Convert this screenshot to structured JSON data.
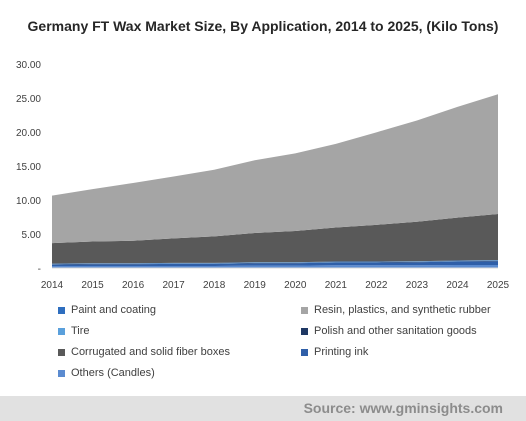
{
  "chart_data": {
    "type": "area",
    "title": "Germany FT Wax Market Size, By Application, 2014 to 2025, (Kilo Tons)",
    "xlabel": "",
    "ylabel": "",
    "x": [
      "2014",
      "2015",
      "2016",
      "2017",
      "2018",
      "2019",
      "2020",
      "2021",
      "2022",
      "2023",
      "2024",
      "2025"
    ],
    "ylim": [
      0,
      30
    ],
    "yticks": [
      0,
      5,
      10,
      15,
      20,
      25,
      30
    ],
    "ytick_labels": [
      "-",
      "5.00",
      "10.00",
      "15.00",
      "20.00",
      "25.00",
      "30.00"
    ],
    "stacked": true,
    "grid": false,
    "legend_position": "bottom",
    "series": [
      {
        "name": "Others (Candles)",
        "color": "#5b8bd0",
        "values": [
          0.3,
          0.3,
          0.3,
          0.3,
          0.3,
          0.35,
          0.35,
          0.4,
          0.4,
          0.4,
          0.45,
          0.45
        ]
      },
      {
        "name": "Printing ink",
        "color": "#2f5fa8",
        "values": [
          0.2,
          0.25,
          0.25,
          0.3,
          0.3,
          0.35,
          0.35,
          0.4,
          0.4,
          0.45,
          0.5,
          0.55
        ]
      },
      {
        "name": "Polish and other sanitation goods",
        "color": "#1f3864",
        "values": [
          0.05,
          0.05,
          0.05,
          0.05,
          0.05,
          0.05,
          0.05,
          0.05,
          0.05,
          0.05,
          0.05,
          0.05
        ]
      },
      {
        "name": "Tire",
        "color": "#5aa0dc",
        "values": [
          0.05,
          0.05,
          0.05,
          0.05,
          0.05,
          0.05,
          0.05,
          0.05,
          0.05,
          0.05,
          0.05,
          0.05
        ]
      },
      {
        "name": "Paint and coating",
        "color": "#2e6ebf",
        "values": [
          0.05,
          0.05,
          0.05,
          0.05,
          0.05,
          0.05,
          0.05,
          0.05,
          0.05,
          0.05,
          0.05,
          0.05
        ]
      },
      {
        "name": "Corrugated and solid fiber boxes",
        "color": "#595959",
        "values": [
          3.0,
          3.2,
          3.3,
          3.6,
          3.9,
          4.3,
          4.6,
          5.0,
          5.4,
          5.8,
          6.3,
          6.8
        ]
      },
      {
        "name": "Resin, plastics, and synthetic rubber",
        "color": "#a5a5a5",
        "values": [
          7.0,
          7.7,
          8.5,
          9.1,
          9.8,
          10.7,
          11.4,
          12.3,
          13.6,
          14.9,
          16.3,
          17.6
        ]
      }
    ]
  },
  "legend": [
    {
      "label": "Paint and coating",
      "color": "#2e6ebf"
    },
    {
      "label": "Resin, plastics, and synthetic rubber",
      "color": "#a5a5a5"
    },
    {
      "label": "Tire",
      "color": "#5aa0dc"
    },
    {
      "label": "Polish and other sanitation goods",
      "color": "#1f3864"
    },
    {
      "label": "Corrugated and solid fiber boxes",
      "color": "#595959"
    },
    {
      "label": "Printing ink",
      "color": "#2f5fa8"
    },
    {
      "label": "Others (Candles)",
      "color": "#5b8bd0"
    }
  ],
  "footer": {
    "source": "Source: www.gminsights.com"
  }
}
